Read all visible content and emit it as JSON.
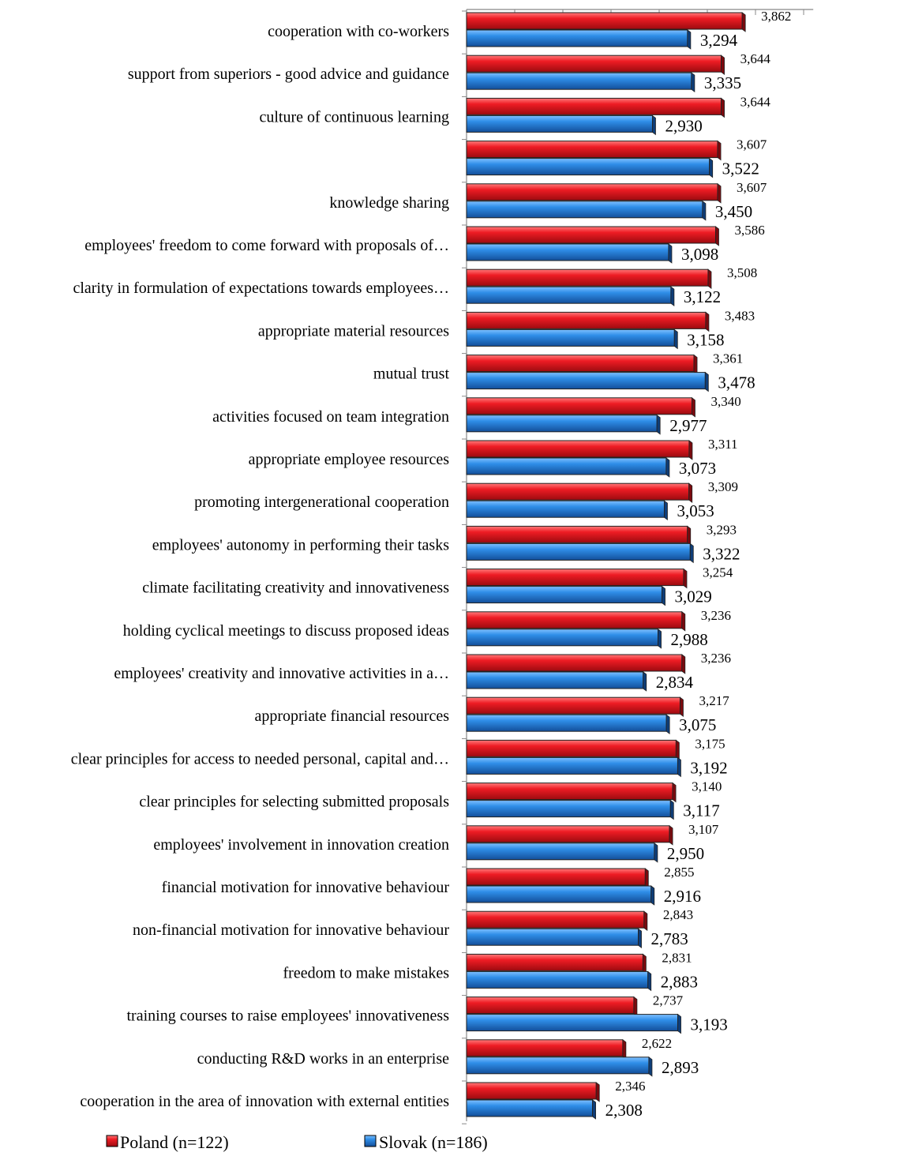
{
  "chart_data": {
    "type": "bar",
    "orientation": "horizontal",
    "grid": false,
    "legend_position": "bottom",
    "xlim": [
      1,
      4.6
    ],
    "tick_values": [
      1.0,
      1.5,
      2.0,
      2.5,
      3.0,
      3.5,
      4.0,
      4.5
    ],
    "categories": [
      "cooperation with co-workers",
      "support from superiors - good advice and guidance",
      "culture of continuous learning",
      "",
      "knowledge sharing",
      "employees' freedom to come forward with proposals of…",
      "clarity in formulation of expectations towards employees…",
      "appropriate material resources",
      "mutual trust",
      "activities focused on team integration",
      "appropriate employee resources",
      "promoting intergenerational cooperation",
      "employees' autonomy in performing their tasks",
      "climate facilitating creativity and innovativeness",
      "holding cyclical meetings to discuss proposed ideas",
      "employees' creativity and innovative activities in a…",
      "appropriate financial resources",
      "clear principles for access to needed personal, capital and…",
      "clear principles for selecting submitted proposals",
      "employees' involvement in innovation creation",
      "financial motivation for innovative behaviour",
      "non-financial motivation for innovative behaviour",
      "freedom to make mistakes",
      "training courses to raise employees' innovativeness",
      "conducting R&D works in an enterprise",
      "cooperation in the area of innovation with external entities"
    ],
    "series": [
      {
        "name": "Poland (n=122)",
        "color": "#e0141c",
        "values": [
          3.862,
          3.644,
          3.644,
          3.607,
          3.607,
          3.586,
          3.508,
          3.483,
          3.361,
          3.34,
          3.311,
          3.309,
          3.293,
          3.254,
          3.236,
          3.236,
          3.217,
          3.175,
          3.14,
          3.107,
          2.855,
          2.843,
          2.831,
          2.737,
          2.622,
          2.346
        ],
        "labels": [
          "3,862",
          "3,644",
          "3,644",
          "3,607",
          "3,607",
          "3,586",
          "3,508",
          "3,483",
          "3,361",
          "3,340",
          "3,311",
          "3,309",
          "3,293",
          "3,254",
          "3,236",
          "3,236",
          "3,217",
          "3,175",
          "3,140",
          "3,107",
          "2,855",
          "2,843",
          "2,831",
          "2,737",
          "2,622",
          "2,346"
        ]
      },
      {
        "name": "Slovak (n=186)",
        "color": "#1f7fe0",
        "values": [
          3.294,
          3.335,
          2.93,
          3.522,
          3.45,
          3.098,
          3.122,
          3.158,
          3.478,
          2.977,
          3.073,
          3.053,
          3.322,
          3.029,
          2.988,
          2.834,
          3.075,
          3.192,
          3.117,
          2.95,
          2.916,
          2.783,
          2.883,
          3.193,
          2.893,
          2.308
        ],
        "labels": [
          "3,294",
          "3,335",
          "2,930",
          "3,522",
          "3,450",
          "3,098",
          "3,122",
          "3,158",
          "3,478",
          "2,977",
          "3,073",
          "3,053",
          "3,322",
          "3,029",
          "2,988",
          "2,834",
          "3,075",
          "3,192",
          "3,117",
          "2,950",
          "2,916",
          "2,783",
          "2,883",
          "3,193",
          "2,893",
          "2,308"
        ]
      }
    ]
  }
}
